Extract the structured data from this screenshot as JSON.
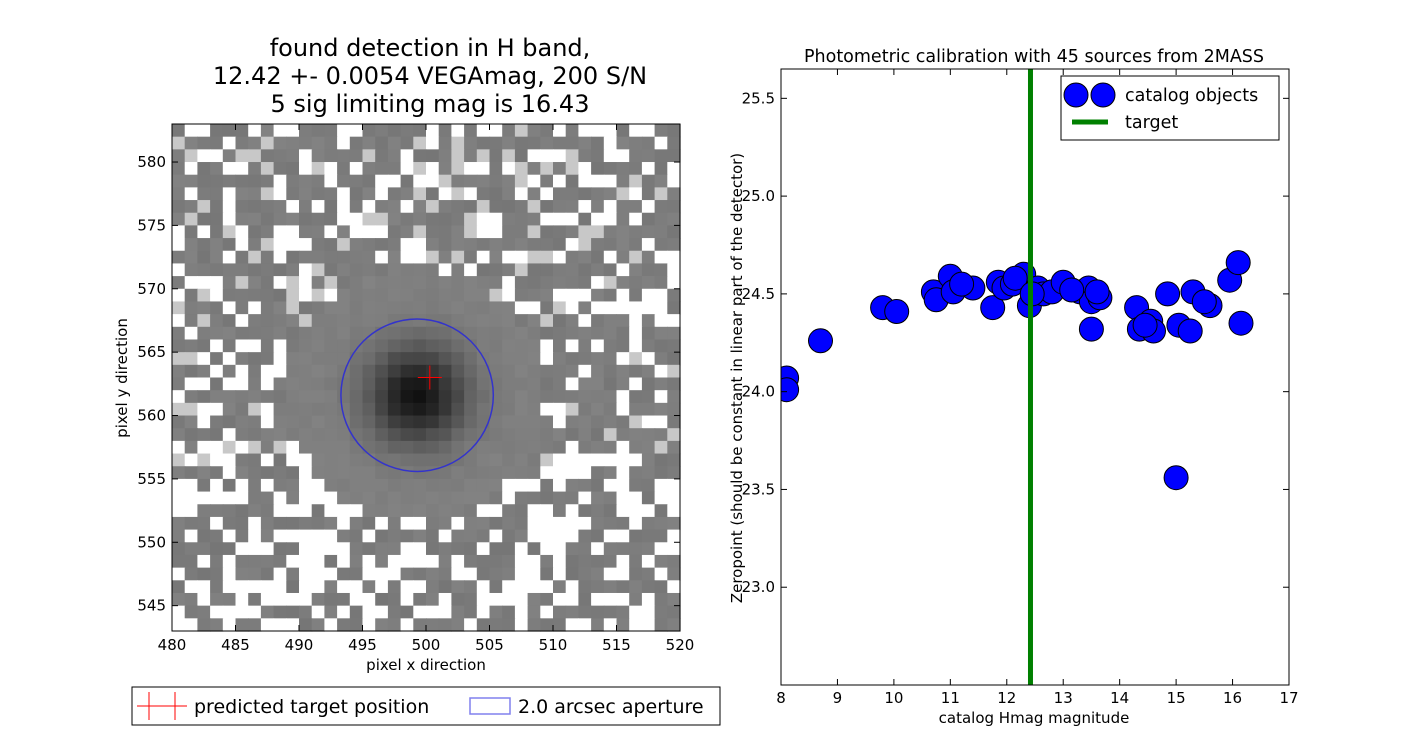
{
  "chart_data": [
    {
      "type": "heatmap",
      "title_lines": [
        "found detection in H band,",
        "12.42 +- 0.0054 VEGAmag, 200 S/N",
        "5 sig limiting mag is 16.43"
      ],
      "xlabel": "pixel x direction",
      "ylabel": "pixel y direction",
      "xlim": [
        480,
        520
      ],
      "ylim": [
        543,
        583
      ],
      "xticks": [
        480,
        485,
        490,
        495,
        500,
        505,
        510,
        515,
        520
      ],
      "yticks": [
        545,
        550,
        555,
        560,
        565,
        570,
        575,
        580
      ],
      "colormap": "gray",
      "source_center": [
        499.3,
        561.6
      ],
      "aperture_center": [
        499.3,
        561.6
      ],
      "aperture_radius": 6.0,
      "predicted_position": [
        500.3,
        563.0
      ],
      "legend": {
        "placement": "below",
        "entries": [
          {
            "label": "predicted target position",
            "marker": "red-cross",
            "color": "#ff0000"
          },
          {
            "label": "2.0 arcsec aperture",
            "marker": "blue-box",
            "color": "#3333cc"
          }
        ]
      }
    },
    {
      "type": "scatter",
      "title": "Photometric calibration with 45 sources from 2MASS",
      "xlabel": "catalog Hmag magnitude",
      "ylabel": "Zeropoint (should be constant in linear part of the detector)",
      "xlim": [
        8,
        17
      ],
      "ylim": [
        22.5,
        25.65
      ],
      "xticks": [
        8,
        9,
        10,
        11,
        12,
        13,
        14,
        15,
        16,
        17
      ],
      "yticks": [
        23.0,
        23.5,
        24.0,
        24.5,
        25.0,
        25.5
      ],
      "ytick_format": 1,
      "grid": false,
      "series": [
        {
          "name": "catalog objects",
          "color": "#0000ff",
          "points": [
            [
              8.1,
              24.07
            ],
            [
              8.1,
              24.01
            ],
            [
              8.7,
              24.26
            ],
            [
              9.8,
              24.43
            ],
            [
              10.05,
              24.41
            ],
            [
              10.7,
              24.51
            ],
            [
              10.75,
              24.47
            ],
            [
              11.0,
              24.59
            ],
            [
              11.05,
              24.51
            ],
            [
              11.4,
              24.53
            ],
            [
              11.75,
              24.43
            ],
            [
              11.85,
              24.56
            ],
            [
              11.95,
              24.53
            ],
            [
              12.1,
              24.55
            ],
            [
              12.3,
              24.6
            ],
            [
              12.4,
              24.44
            ],
            [
              12.55,
              24.53
            ],
            [
              12.65,
              24.5
            ],
            [
              12.8,
              24.51
            ],
            [
              13.0,
              24.56
            ],
            [
              13.3,
              24.51
            ],
            [
              13.45,
              24.53
            ],
            [
              13.5,
              24.46
            ],
            [
              13.5,
              24.32
            ],
            [
              13.65,
              24.48
            ],
            [
              13.6,
              24.51
            ],
            [
              14.3,
              24.43
            ],
            [
              14.35,
              24.32
            ],
            [
              14.55,
              24.36
            ],
            [
              14.6,
              24.31
            ],
            [
              14.85,
              24.5
            ],
            [
              15.05,
              24.34
            ],
            [
              15.25,
              24.31
            ],
            [
              15.3,
              24.51
            ],
            [
              15.6,
              24.44
            ],
            [
              15.5,
              24.46
            ],
            [
              15.95,
              24.57
            ],
            [
              16.1,
              24.66
            ],
            [
              16.15,
              24.35
            ],
            [
              15.0,
              23.56
            ],
            [
              12.15,
              24.58
            ],
            [
              11.2,
              24.55
            ],
            [
              13.15,
              24.52
            ],
            [
              14.45,
              24.34
            ],
            [
              12.45,
              24.5
            ]
          ]
        }
      ],
      "target_mag": 12.42,
      "target_color": "#008000",
      "legend": {
        "placement": "top-right",
        "entries": [
          {
            "label": "catalog objects",
            "marker": "circle",
            "color": "#0000ff"
          },
          {
            "label": "target",
            "marker": "line",
            "color": "#008000"
          }
        ]
      }
    }
  ]
}
